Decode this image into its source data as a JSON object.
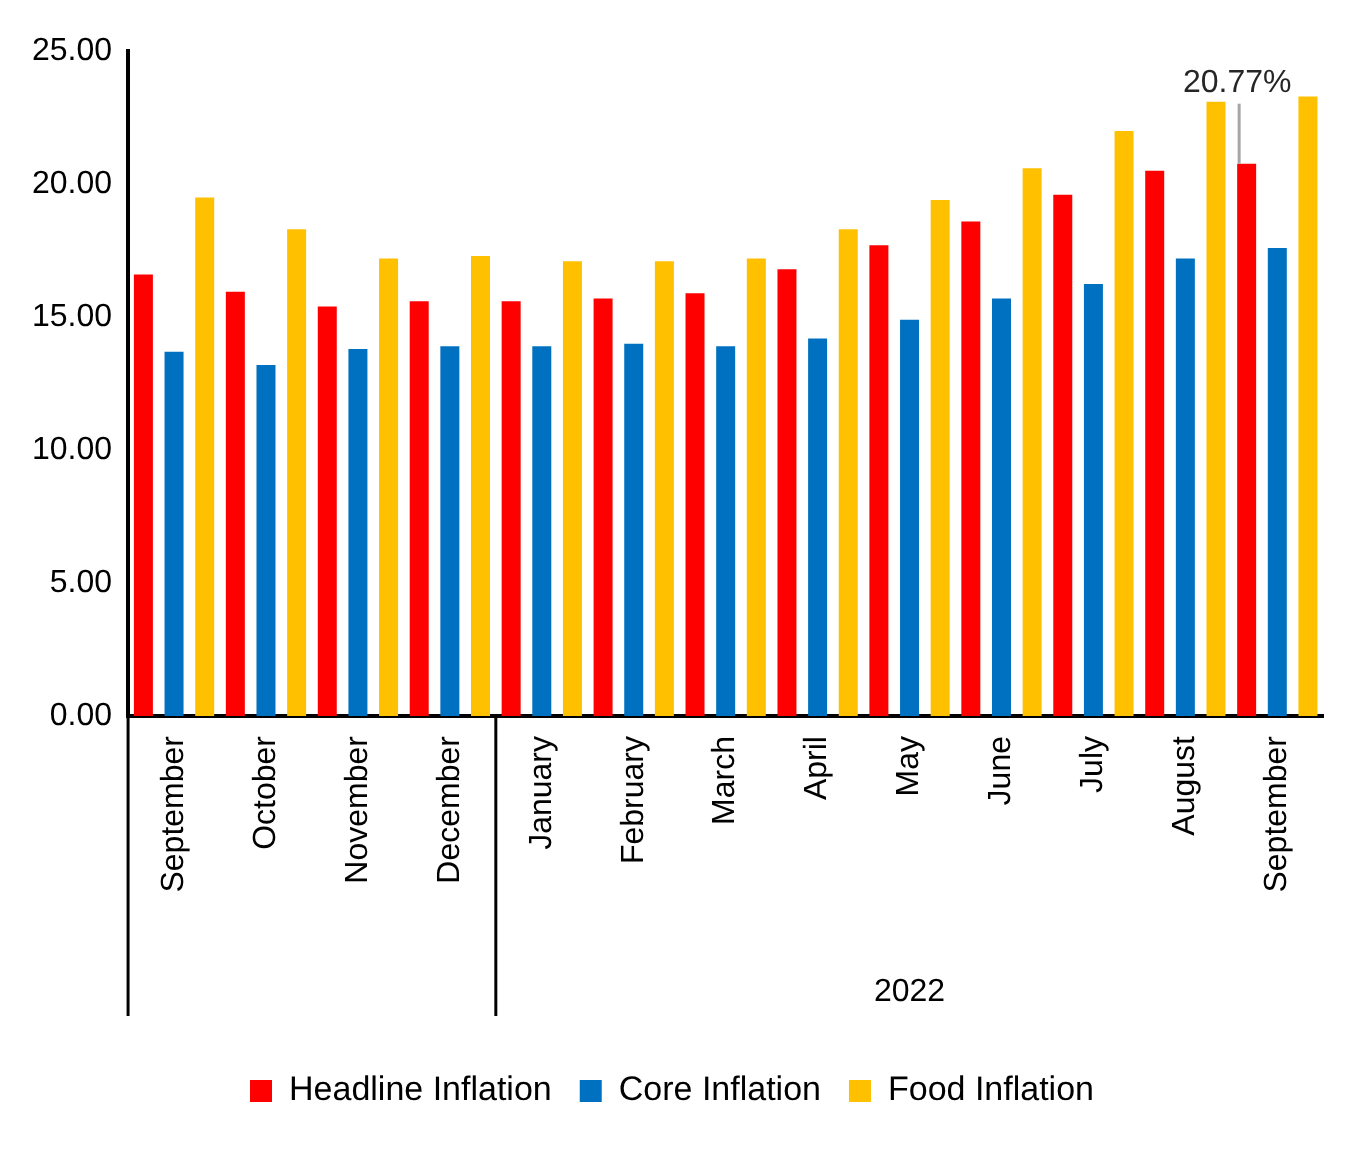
{
  "chart_data": {
    "type": "bar",
    "categories": [
      "September",
      "October",
      "November",
      "December",
      "January",
      "February",
      "March",
      "April",
      "May",
      "June",
      "July",
      "August",
      "September"
    ],
    "series": [
      {
        "name": "Headline Inflation",
        "color": "#ff0000",
        "values": [
          16.6,
          15.95,
          15.4,
          15.6,
          15.6,
          15.7,
          15.9,
          16.8,
          17.7,
          18.6,
          19.6,
          20.5,
          20.77
        ],
        "value_labels": [
          null,
          null,
          null,
          null,
          null,
          null,
          null,
          null,
          null,
          null,
          null,
          null,
          "20.77%"
        ]
      },
      {
        "name": "Core Inflation",
        "color": "#0070c0",
        "values": [
          13.7,
          13.2,
          13.8,
          13.9,
          13.9,
          14.0,
          13.9,
          14.2,
          14.9,
          15.7,
          16.25,
          17.2,
          17.6
        ]
      },
      {
        "name": "Food Inflation",
        "color": "#ffc000",
        "values": [
          19.5,
          18.3,
          17.2,
          17.3,
          17.1,
          17.1,
          17.2,
          18.3,
          19.4,
          20.6,
          22.0,
          23.1,
          23.3
        ]
      }
    ],
    "ylim": [
      0,
      25
    ],
    "yticks": [
      {
        "value": 0,
        "label": "0.00"
      },
      {
        "value": 5,
        "label": "5.00"
      },
      {
        "value": 10,
        "label": "10.00"
      },
      {
        "value": 15,
        "label": "15.00"
      },
      {
        "value": 20,
        "label": "20.00"
      },
      {
        "value": 25,
        "label": "25.00"
      }
    ],
    "annotations": [
      "2022"
    ],
    "grid": false,
    "legend": "bottom"
  }
}
